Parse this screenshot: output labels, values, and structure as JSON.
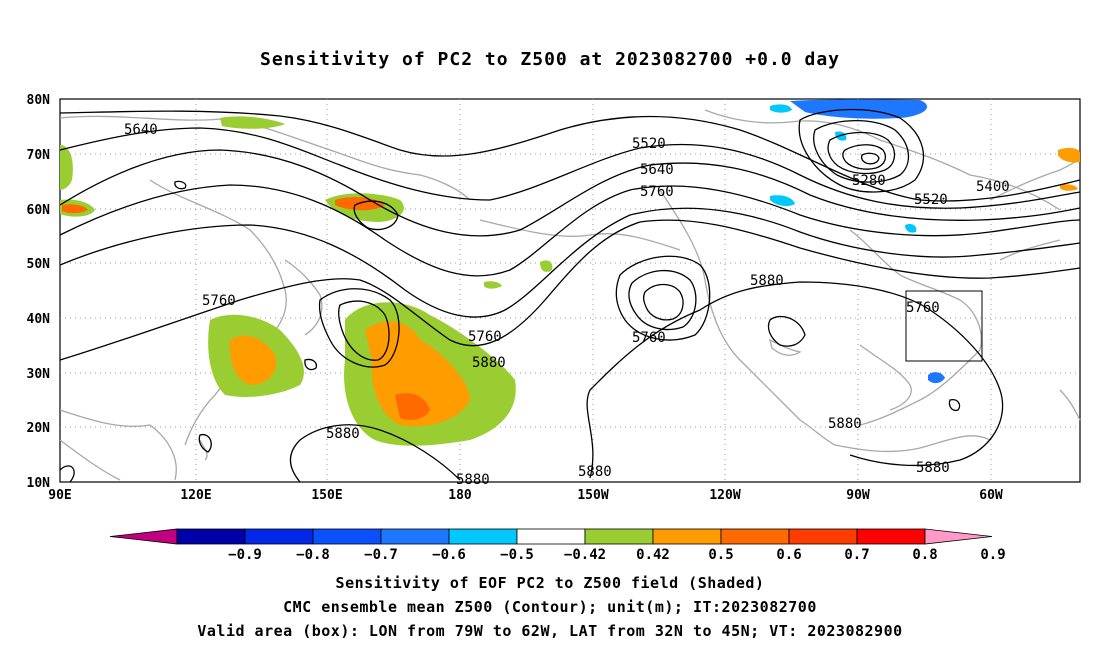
{
  "title": "Sensitivity of PC2 to Z500 at 2023082700 +0.0 day",
  "lat_labels": [
    "80N",
    "70N",
    "60N",
    "50N",
    "40N",
    "30N",
    "20N",
    "10N"
  ],
  "lon_labels": [
    "90E",
    "120E",
    "150E",
    "180",
    "150W",
    "120W",
    "90W",
    "60W"
  ],
  "contour_labels": [
    {
      "text": "5640"
    },
    {
      "text": "5520"
    },
    {
      "text": "5640"
    },
    {
      "text": "5760"
    },
    {
      "text": "5280"
    },
    {
      "text": "5400"
    },
    {
      "text": "5520"
    },
    {
      "text": "5760"
    },
    {
      "text": "5760"
    },
    {
      "text": "5880"
    },
    {
      "text": "5760"
    },
    {
      "text": "5760"
    },
    {
      "text": "5880"
    },
    {
      "text": "5880"
    },
    {
      "text": "5880"
    },
    {
      "text": "5880"
    },
    {
      "text": "5880"
    },
    {
      "text": "5880"
    }
  ],
  "colorbar": {
    "colors": [
      "#c0007f",
      "#0000a8",
      "#0028e6",
      "#0a50ff",
      "#1e78ff",
      "#00c8ff",
      "#ffffff",
      "#9acd32",
      "#ff9c00",
      "#ff6a00",
      "#ff3c00",
      "#ff0000",
      "#ff9ac8"
    ],
    "labels": [
      "−0.9",
      "−0.8",
      "−0.7",
      "−0.6",
      "−0.5",
      "−0.42",
      "0.42",
      "0.5",
      "0.6",
      "0.7",
      "0.8",
      "0.9"
    ]
  },
  "captions": [
    "Sensitivity of EOF PC2 to Z500 field (Shaded)",
    "CMC ensemble mean Z500 (Contour); unit(m); IT:2023082700",
    "Valid area (box): LON from 79W to 62W, LAT from 32N to 45N; VT: 2023082900"
  ]
}
